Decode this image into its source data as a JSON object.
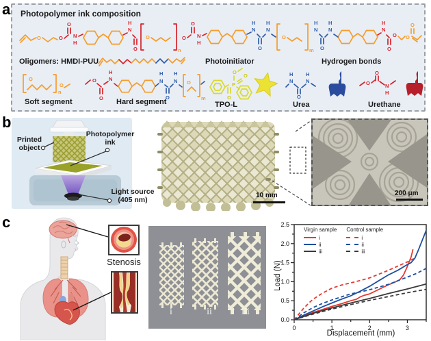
{
  "panels": {
    "a": "a",
    "b": "b",
    "c": "c"
  },
  "panel_a": {
    "title": "Photopolymer ink composition",
    "oligomers_label": "Oligomers: HMDI-PUU",
    "photoinitiator_label": "Photoinitiator",
    "hydrogen_bonds_label": "Hydrogen bonds",
    "soft_segment_label": "Soft segment",
    "hard_segment_label": "Hard segment",
    "tpo_label": "TPO-L",
    "urea_label": "Urea",
    "urethane_label": "Urethane",
    "colors": {
      "orange": "#F59C2B",
      "red": "#D6232B",
      "blue": "#2E5CA8",
      "yellow": "#D9D92A"
    }
  },
  "chem": {
    "O": "O",
    "N": "N",
    "H": "H",
    "n": "n",
    "m": "m",
    "P": "P"
  },
  "panel_b": {
    "printed_object_label": "Printed object",
    "ink_label": "Photopolymer ink",
    "light_source_line1": "Light source",
    "light_source_line2": "(405 nm)",
    "photo_scale": "10 mm",
    "micro_scale": "200 μm"
  },
  "panel_c": {
    "stenosis_label": "Stenosis",
    "stent_labels": [
      "i",
      "ii",
      "iii"
    ]
  },
  "chart_data": {
    "type": "line",
    "title": "",
    "xlabel": "Displacement (mm)",
    "ylabel": "Load (N)",
    "xlim": [
      0,
      3.5
    ],
    "ylim": [
      0,
      2.5
    ],
    "x_ticks": [
      "0",
      "1",
      "2",
      "3"
    ],
    "y_ticks": [
      "0.0",
      "0.5",
      "1.0",
      "1.5",
      "2.0",
      "2.5"
    ],
    "grid": false,
    "legend_position": "top-left",
    "legend": {
      "group1": "Virgin sample",
      "group2": "Control sample",
      "entries": [
        "i",
        "ii",
        "iii"
      ]
    },
    "series": [
      {
        "name": "Virgin i",
        "color": "#E8392F",
        "dash": "solid",
        "points": [
          [
            0,
            0
          ],
          [
            0.25,
            0.1
          ],
          [
            0.5,
            0.19
          ],
          [
            0.75,
            0.27
          ],
          [
            1,
            0.35
          ],
          [
            1.25,
            0.42
          ],
          [
            1.5,
            0.5
          ],
          [
            1.65,
            0.54
          ],
          [
            1.75,
            0.6
          ],
          [
            1.85,
            0.64
          ],
          [
            2,
            0.68
          ],
          [
            2.25,
            0.8
          ],
          [
            2.5,
            0.92
          ],
          [
            2.65,
            0.98
          ],
          [
            2.8,
            1.05
          ],
          [
            2.9,
            1.18
          ],
          [
            3,
            1.4
          ],
          [
            3.1,
            1.65
          ],
          [
            3.15,
            1.85
          ]
        ]
      },
      {
        "name": "Virgin ii",
        "color": "#1E4FA0",
        "dash": "solid",
        "points": [
          [
            0,
            0
          ],
          [
            0.25,
            0.12
          ],
          [
            0.5,
            0.23
          ],
          [
            0.75,
            0.34
          ],
          [
            1,
            0.44
          ],
          [
            1.25,
            0.54
          ],
          [
            1.5,
            0.63
          ],
          [
            1.75,
            0.75
          ],
          [
            2,
            0.88
          ],
          [
            2.25,
            1.03
          ],
          [
            2.5,
            1.18
          ],
          [
            2.75,
            1.3
          ],
          [
            3,
            1.45
          ],
          [
            3.1,
            1.5
          ],
          [
            3.2,
            1.62
          ],
          [
            3.3,
            1.85
          ],
          [
            3.4,
            2.1
          ],
          [
            3.5,
            2.35
          ]
        ]
      },
      {
        "name": "Virgin iii",
        "color": "#3A3A3A",
        "dash": "solid",
        "points": [
          [
            0,
            0
          ],
          [
            0.5,
            0.17
          ],
          [
            1,
            0.31
          ],
          [
            1.5,
            0.44
          ],
          [
            2,
            0.56
          ],
          [
            2.5,
            0.69
          ],
          [
            3,
            0.81
          ],
          [
            3.5,
            0.94
          ]
        ]
      },
      {
        "name": "Control i",
        "color": "#E8392F",
        "dash": "dashed",
        "points": [
          [
            0,
            0
          ],
          [
            0.1,
            0.12
          ],
          [
            0.25,
            0.3
          ],
          [
            0.4,
            0.45
          ],
          [
            0.5,
            0.54
          ],
          [
            0.75,
            0.7
          ],
          [
            1,
            0.83
          ],
          [
            1.25,
            0.91
          ],
          [
            1.5,
            0.97
          ],
          [
            1.75,
            1.03
          ],
          [
            2,
            1.1
          ],
          [
            2.25,
            1.2
          ],
          [
            2.5,
            1.3
          ],
          [
            2.75,
            1.41
          ],
          [
            3,
            1.52
          ],
          [
            3.1,
            1.57
          ],
          [
            3.2,
            1.62
          ]
        ]
      },
      {
        "name": "Control ii",
        "color": "#1E4FA0",
        "dash": "dashed",
        "points": [
          [
            0,
            0
          ],
          [
            0.25,
            0.18
          ],
          [
            0.5,
            0.32
          ],
          [
            0.75,
            0.43
          ],
          [
            1,
            0.52
          ],
          [
            1.25,
            0.6
          ],
          [
            1.5,
            0.68
          ],
          [
            1.75,
            0.73
          ],
          [
            2,
            0.79
          ],
          [
            2.5,
            0.93
          ],
          [
            3,
            1.12
          ],
          [
            3.25,
            1.22
          ],
          [
            3.5,
            1.35
          ]
        ]
      },
      {
        "name": "Control iii",
        "color": "#3A3A3A",
        "dash": "dashed",
        "points": [
          [
            0,
            0
          ],
          [
            0.5,
            0.15
          ],
          [
            1,
            0.28
          ],
          [
            1.5,
            0.4
          ],
          [
            2,
            0.51
          ],
          [
            2.5,
            0.61
          ],
          [
            3,
            0.71
          ],
          [
            3.5,
            0.8
          ]
        ]
      }
    ]
  }
}
